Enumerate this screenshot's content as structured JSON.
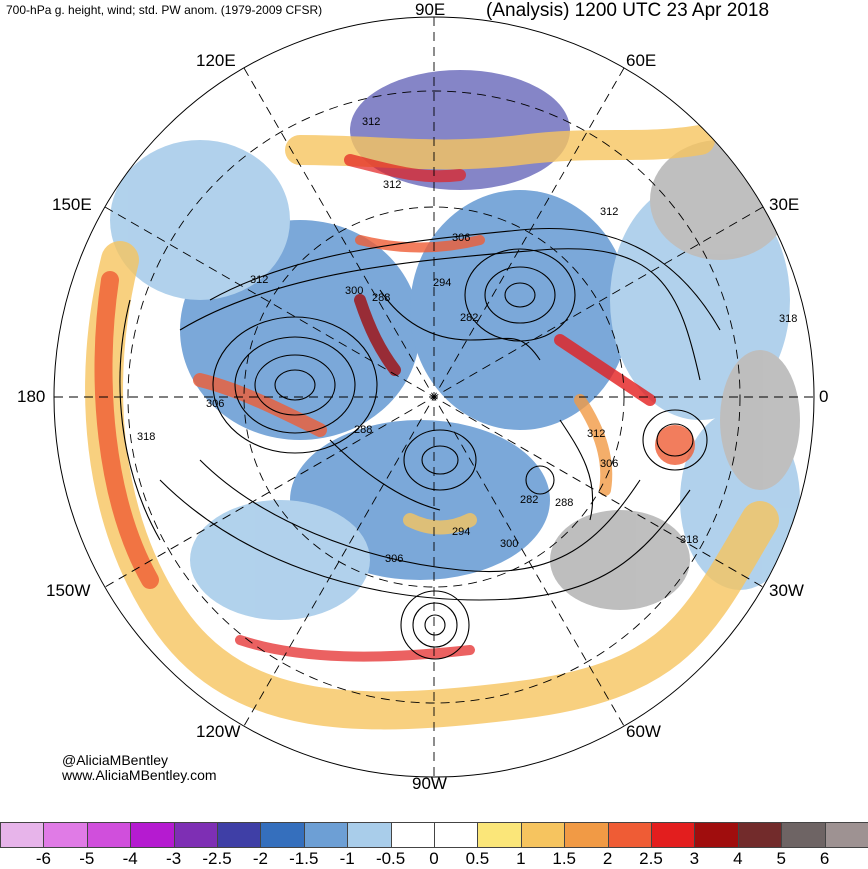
{
  "header": {
    "left": "700-hPa g. height, wind; std. PW anom. (1979-2009 CFSR)",
    "right": "(Analysis) 1200 UTC 23 Apr 2018"
  },
  "longitude_labels": {
    "e90": "90E",
    "e60": "60E",
    "e30": "30E",
    "zero": "0",
    "w30": "30W",
    "w60": "60W",
    "w90": "90W",
    "w120": "120W",
    "w150": "150W",
    "d180": "180",
    "e150": "150E",
    "e120": "120E"
  },
  "contour_labels": [
    "312",
    "312",
    "312",
    "306",
    "294",
    "300",
    "288",
    "282",
    "306",
    "318",
    "288",
    "282",
    "288",
    "294",
    "300",
    "306",
    "312",
    "306",
    "312",
    "318",
    "318"
  ],
  "credit": {
    "handle": "@AliciaMBentley",
    "site": "www.AliciaMBentley.com"
  },
  "colorbar": {
    "ticks": [
      "-6",
      "-5",
      "-4",
      "-3",
      "-2.5",
      "-2",
      "-1.5",
      "-1",
      "-0.5",
      "0",
      "0.5",
      "1",
      "1.5",
      "2",
      "2.5",
      "3",
      "4",
      "5",
      "6"
    ],
    "colors": [
      "#e7b4ea",
      "#e07be6",
      "#d04fdc",
      "#b51bd0",
      "#7e2fb4",
      "#3f3fa6",
      "#356fbd",
      "#6d9fd5",
      "#a9cdea",
      "#ffffff",
      "#ffffff",
      "#fbe679",
      "#f6c45f",
      "#f19a45",
      "#ef5c35",
      "#e31e1e",
      "#a00d0d",
      "#722b2b",
      "#6e6464",
      "#9e9292"
    ]
  },
  "colors": {
    "land_gray": "#b8b8b8",
    "blue_mid": "#6d9fd5",
    "blue_light": "#a9cdea",
    "red": "#e31e1e",
    "orange": "#f19a45",
    "yellow": "#fbe679"
  }
}
